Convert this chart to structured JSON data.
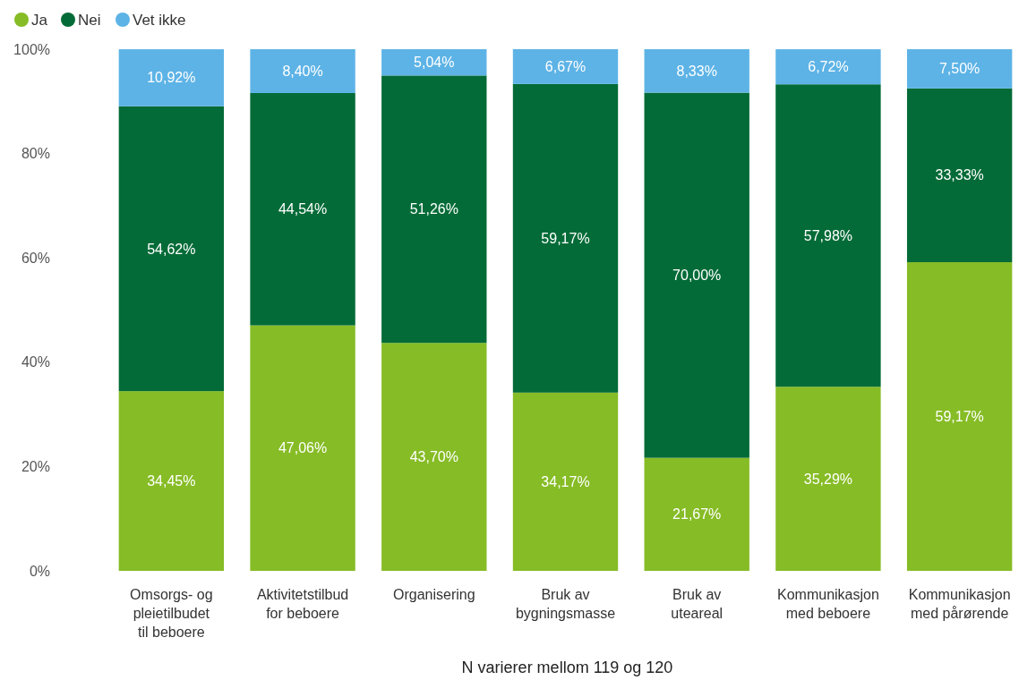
{
  "chart_data": {
    "type": "bar",
    "stacked": true,
    "xlabel": "N varierer mellom 119 og 120",
    "categories": [
      "Omsorgs- og pleietilbudet til beboere",
      "Aktivitetstilbud for beboere",
      "Organisering",
      "Bruk av bygningsmasse",
      "Bruk av uteareal",
      "Kommunikasjon med beboere",
      "Kommunikasjon med pårørende"
    ],
    "series": [
      {
        "name": "Ja",
        "color": "#86bc25",
        "values": [
          34.45,
          47.06,
          43.7,
          34.17,
          21.67,
          35.29,
          59.17
        ],
        "value_labels": [
          "34,45%",
          "47,06%",
          "43,70%",
          "34,17%",
          "21,67%",
          "35,29%",
          "59,17%"
        ]
      },
      {
        "name": "Nei",
        "color": "#036b37",
        "values": [
          54.62,
          44.54,
          51.26,
          59.17,
          70.0,
          57.98,
          33.33
        ],
        "value_labels": [
          "54,62%",
          "44,54%",
          "51,26%",
          "59,17%",
          "70,00%",
          "57,98%",
          "33,33%"
        ]
      },
      {
        "name": "Vet ikke",
        "color": "#5db3e6",
        "values": [
          10.92,
          8.4,
          5.04,
          6.67,
          8.33,
          6.72,
          7.5
        ],
        "value_labels": [
          "10,92%",
          "8,40%",
          "5,04%",
          "6,67%",
          "8,33%",
          "6,72%",
          "7,50%"
        ]
      }
    ],
    "ylim": [
      0,
      100
    ],
    "yticks": [
      {
        "value": 0,
        "label": "0%"
      },
      {
        "value": 20,
        "label": "20%"
      },
      {
        "value": 40,
        "label": "40%"
      },
      {
        "value": 60,
        "label": "60%"
      },
      {
        "value": 80,
        "label": "80%"
      },
      {
        "value": 100,
        "label": "100%"
      }
    ],
    "grid": false,
    "legend": "top left"
  }
}
